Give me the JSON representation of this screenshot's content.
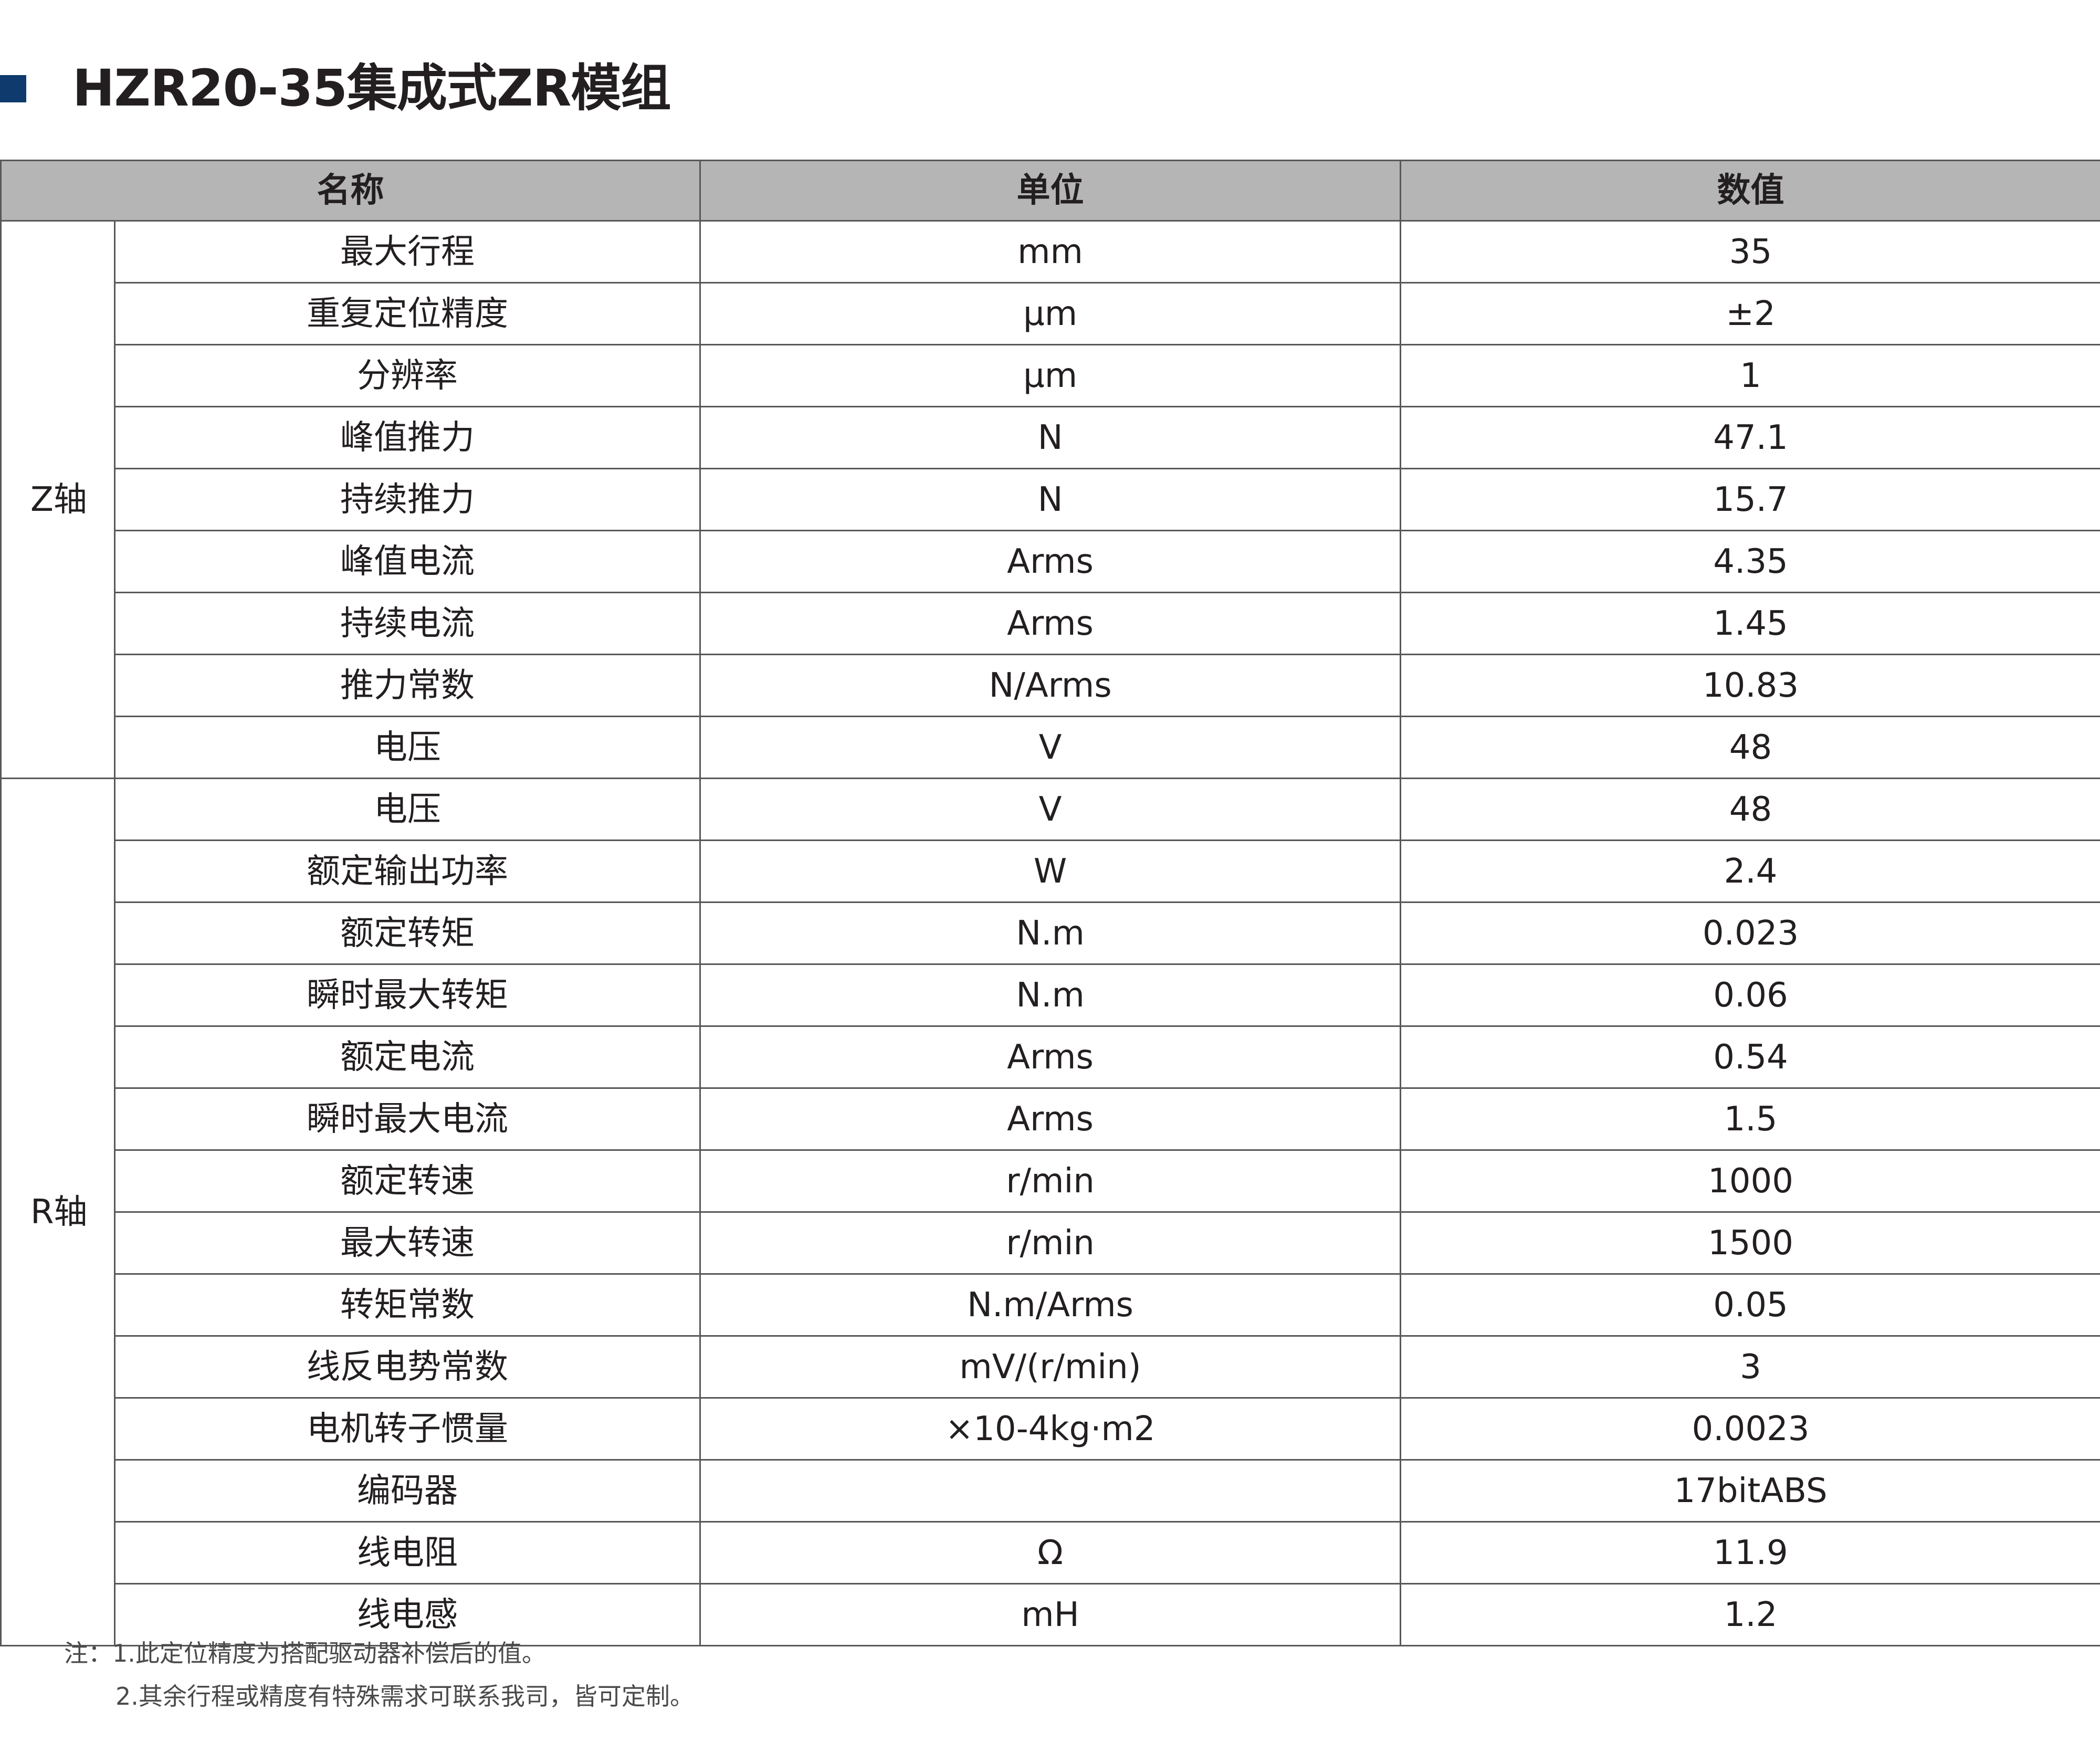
{
  "title": "HZR20-35集成式ZR模组",
  "colors": {
    "accent": "#0f3a6d",
    "header_bg": "#b5b5b6"
  },
  "headers": {
    "name": "名称",
    "unit": "单位",
    "value": "数值"
  },
  "groups": [
    {
      "label": "Z轴",
      "rows": [
        {
          "name": "最大行程",
          "unit": "mm",
          "value": "35"
        },
        {
          "name": "重复定位精度",
          "unit": "μm",
          "value": "±2"
        },
        {
          "name": "分辨率",
          "unit": "μm",
          "value": "1"
        },
        {
          "name": "峰值推力",
          "unit": "N",
          "value": "47.1"
        },
        {
          "name": "持续推力",
          "unit": "N",
          "value": "15.7"
        },
        {
          "name": "峰值电流",
          "unit": "Arms",
          "value": "4.35"
        },
        {
          "name": "持续电流",
          "unit": "Arms",
          "value": "1.45"
        },
        {
          "name": "推力常数",
          "unit": "N/Arms",
          "value": "10.83"
        },
        {
          "name": "电压",
          "unit": "V",
          "value": "48"
        }
      ]
    },
    {
      "label": "R轴",
      "rows": [
        {
          "name": "电压",
          "unit": "V",
          "value": "48"
        },
        {
          "name": "额定输出功率",
          "unit": "W",
          "value": "2.4"
        },
        {
          "name": "额定转矩",
          "unit": "N.m",
          "value": "0.023"
        },
        {
          "name": "瞬时最大转矩",
          "unit": "N.m",
          "value": "0.06"
        },
        {
          "name": "额定电流",
          "unit": "Arms",
          "value": "0.54"
        },
        {
          "name": "瞬时最大电流",
          "unit": "Arms",
          "value": "1.5"
        },
        {
          "name": "额定转速",
          "unit": "r/min",
          "value": "1000"
        },
        {
          "name": "最大转速",
          "unit": "r/min",
          "value": "1500"
        },
        {
          "name": "转矩常数",
          "unit": "N.m/Arms",
          "value": "0.05"
        },
        {
          "name": "线反电势常数",
          "unit": "mV/(r/min)",
          "value": "3"
        },
        {
          "name": "电机转子惯量",
          "unit": "×10-4kg·m2",
          "value": "0.0023"
        },
        {
          "name": "编码器",
          "unit": "",
          "value": "17bitABS"
        },
        {
          "name": "线电阻",
          "unit": "Ω",
          "value": "11.9"
        },
        {
          "name": "线电感",
          "unit": "mH",
          "value": "1.2"
        }
      ]
    }
  ],
  "notes": {
    "line1": "注：1.此定位精度为搭配驱动器补偿后的值。",
    "line2": "2.其余行程或精度有特殊需求可联系我司，皆可定制。"
  }
}
